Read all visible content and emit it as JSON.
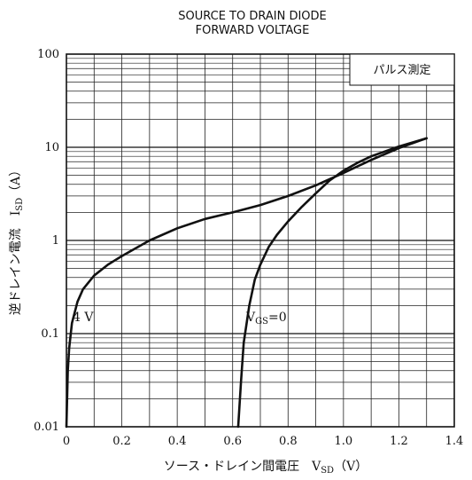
{
  "chart_data": {
    "type": "line",
    "title": [
      "SOURCE TO DRAIN DIODE",
      "FORWARD VOLTAGE"
    ],
    "xlabel": "ソース・ドレイン間電圧　V",
    "xlabel_sub": "SD",
    "xlabel_unit": "（V）",
    "ylabel": "逆ドレイン電流　I",
    "ylabel_sub": "SD",
    "ylabel_unit": "（A）",
    "xlim": [
      0,
      1.4
    ],
    "ylim": [
      0.01,
      100
    ],
    "yscale": "log",
    "grid": true,
    "x_ticks": [
      "0",
      "0.2",
      "0.4",
      "0.6",
      "0.8",
      "1.0",
      "1.2",
      "1.4"
    ],
    "y_ticks": [
      "0.01",
      "0.1",
      "1",
      "10",
      "100"
    ],
    "legend_box": "パルス測定",
    "series": [
      {
        "name": "4 V",
        "label_main": "4 V",
        "label_sub": "",
        "label_rest": "",
        "x": [
          0.0,
          0.005,
          0.01,
          0.02,
          0.04,
          0.06,
          0.1,
          0.15,
          0.2,
          0.3,
          0.4,
          0.5,
          0.6,
          0.7,
          0.8,
          0.9,
          1.0,
          1.1,
          1.2,
          1.3
        ],
        "y": [
          0.01,
          0.04,
          0.07,
          0.13,
          0.22,
          0.3,
          0.42,
          0.55,
          0.68,
          1.0,
          1.35,
          1.7,
          2.0,
          2.4,
          3.0,
          3.9,
          5.3,
          7.3,
          9.8,
          12.5
        ]
      },
      {
        "name": "VGS=0",
        "label_main": "V",
        "label_sub": "GS",
        "label_rest": "=0",
        "x": [
          0.62,
          0.63,
          0.64,
          0.66,
          0.68,
          0.7,
          0.73,
          0.76,
          0.8,
          0.85,
          0.9,
          0.95,
          1.0,
          1.05,
          1.1,
          1.2,
          1.3
        ],
        "y": [
          0.01,
          0.03,
          0.08,
          0.2,
          0.38,
          0.55,
          0.85,
          1.15,
          1.6,
          2.3,
          3.2,
          4.4,
          5.6,
          6.8,
          8.0,
          10.2,
          12.5
        ]
      }
    ]
  }
}
